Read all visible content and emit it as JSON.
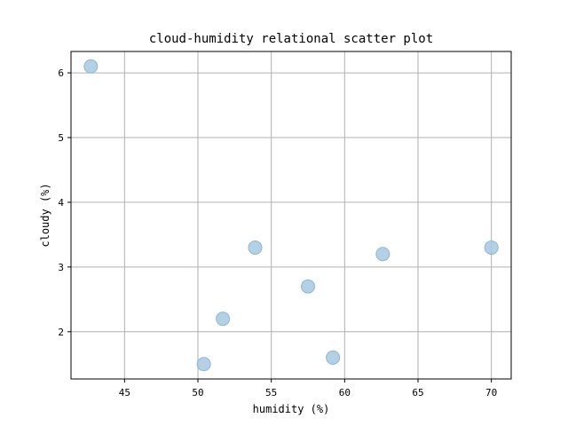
{
  "chart_data": {
    "type": "scatter",
    "title": "cloud-humidity relational scatter plot",
    "xlabel": "humidity (%)",
    "ylabel": "cloudy (%)",
    "xlim": [
      41.35,
      71.35
    ],
    "ylim": [
      1.27,
      6.33
    ],
    "xticks": [
      45,
      50,
      55,
      60,
      65,
      70
    ],
    "yticks": [
      2,
      3,
      4,
      5,
      6
    ],
    "grid": true,
    "point_color": "#a6c8e0",
    "point_edge_color": "#8fb6d6",
    "points": [
      {
        "x": 42.7,
        "y": 6.1
      },
      {
        "x": 50.4,
        "y": 1.5
      },
      {
        "x": 51.7,
        "y": 2.2
      },
      {
        "x": 53.9,
        "y": 3.3
      },
      {
        "x": 57.5,
        "y": 2.7
      },
      {
        "x": 59.2,
        "y": 1.6
      },
      {
        "x": 62.6,
        "y": 3.2
      },
      {
        "x": 70.0,
        "y": 3.3
      }
    ]
  }
}
